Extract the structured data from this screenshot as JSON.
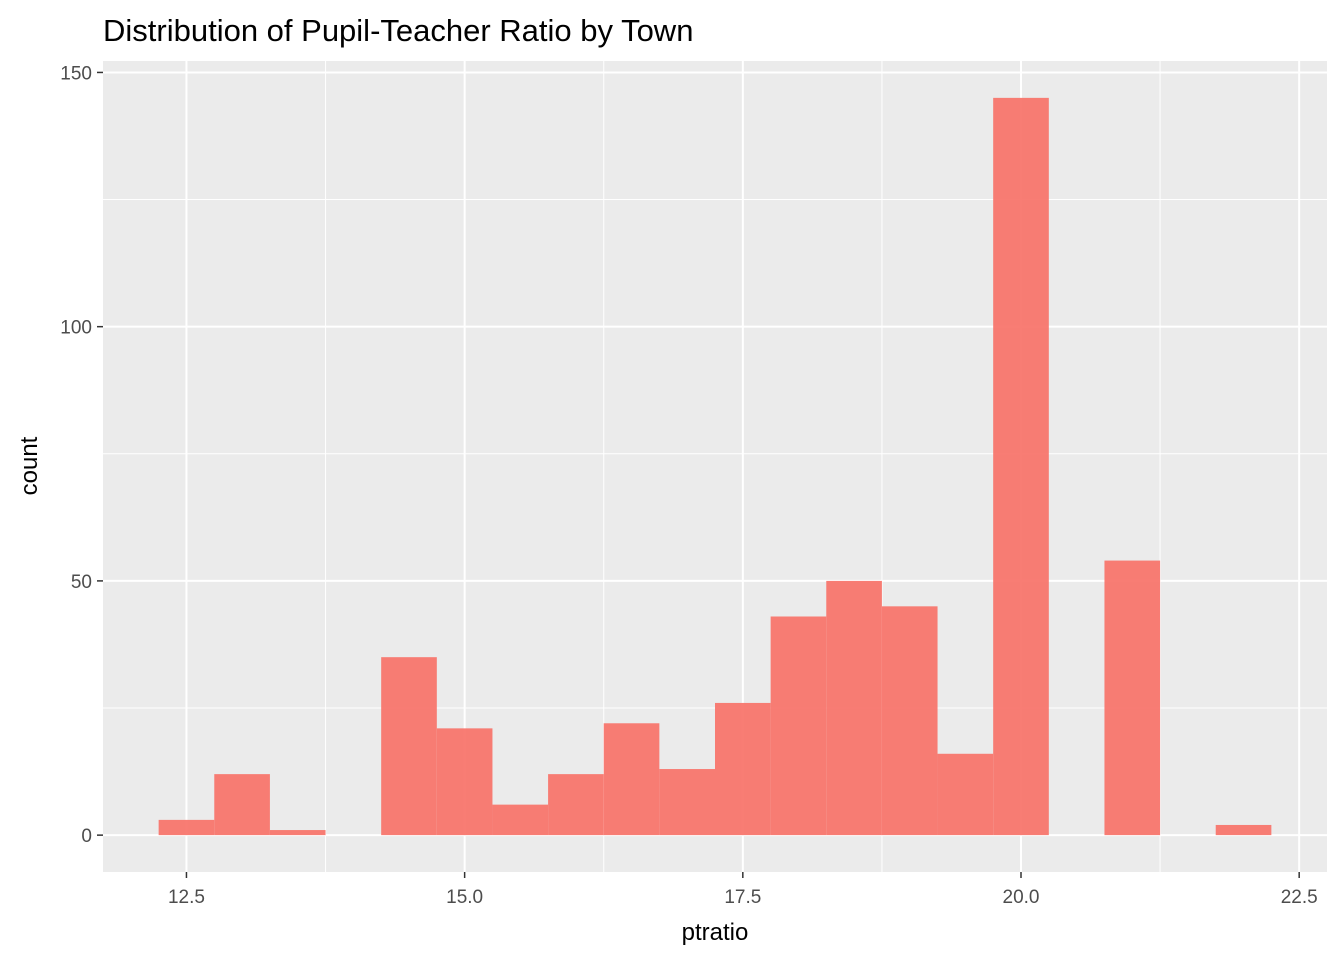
{
  "chart_data": {
    "type": "bar",
    "title": "Distribution of Pupil-Teacher Ratio by Town",
    "xlabel": "ptratio",
    "ylabel": "count",
    "xlim": [
      11.75,
      22.75
    ],
    "ylim": [
      -7.25,
      152.25
    ],
    "binwidth": 0.5,
    "x_ticks": [
      12.5,
      15.0,
      17.5,
      20.0,
      22.5
    ],
    "x_tick_labels": [
      "12.5",
      "15.0",
      "17.5",
      "20.0",
      "22.5"
    ],
    "y_ticks": [
      0,
      50,
      100,
      150
    ],
    "y_tick_labels": [
      "0",
      "50",
      "100",
      "150"
    ],
    "x": [
      12.5,
      13.0,
      13.5,
      14.0,
      14.5,
      15.0,
      15.5,
      16.0,
      16.5,
      17.0,
      17.5,
      18.0,
      18.5,
      19.0,
      19.5,
      20.0,
      20.5,
      21.0,
      21.5,
      22.0
    ],
    "values": [
      3,
      12,
      1,
      0,
      35,
      21,
      6,
      12,
      22,
      13,
      26,
      43,
      50,
      45,
      16,
      145,
      0,
      54,
      0,
      2
    ],
    "grid": true,
    "legend": "none",
    "colors": {
      "bar_fill": "#F8766D",
      "bar_opacity": 0.95,
      "panel_background": "#EBEBEB",
      "grid_line": "#FFFFFF",
      "tick_text": "#4D4D4D",
      "tick_mark": "#333333"
    }
  }
}
